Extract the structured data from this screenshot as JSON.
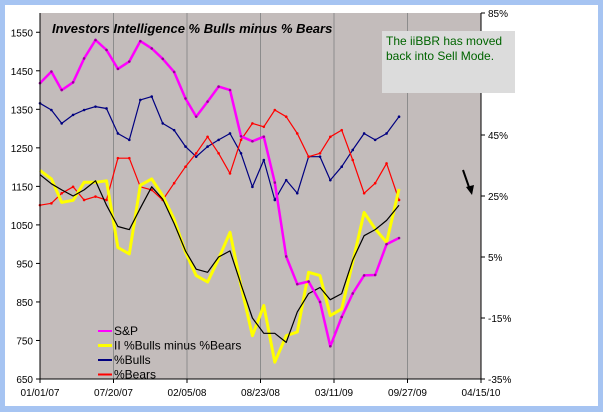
{
  "chart_data": {
    "type": "line",
    "title": "Investors Intelligence % Bulls minus % Bears",
    "annotation": "The iiBBR has moved back into Sell Mode.",
    "x_tick_labels": [
      "01/01/07",
      "07/20/07",
      "02/05/08",
      "08/23/08",
      "03/11/09",
      "09/27/09",
      "04/15/10"
    ],
    "xlim": [
      "2007-01-01",
      "2010-04-15"
    ],
    "y_left": {
      "ylim": [
        650,
        1600
      ],
      "tick_labels": [
        "650",
        "750",
        "850",
        "950",
        "1050",
        "1150",
        "1250",
        "1350",
        "1450",
        "1550"
      ]
    },
    "y_right": {
      "ylim": [
        -35,
        85
      ],
      "tick_labels": [
        "-35%",
        "-15%",
        "5%",
        "25%",
        "45%",
        "65%",
        "85%"
      ]
    },
    "grid": "vertical",
    "legend_placement": "bottom-left",
    "background_color": "#c3bcbb",
    "x": [
      "2007-01-01",
      "2007-02-01",
      "2007-03-01",
      "2007-04-01",
      "2007-05-01",
      "2007-06-01",
      "2007-07-01",
      "2007-08-01",
      "2007-09-01",
      "2007-10-01",
      "2007-11-01",
      "2007-12-01",
      "2008-01-01",
      "2008-02-01",
      "2008-03-01",
      "2008-04-01",
      "2008-05-01",
      "2008-06-01",
      "2008-07-01",
      "2008-08-01",
      "2008-09-01",
      "2008-10-01",
      "2008-11-01",
      "2008-12-01",
      "2009-01-01",
      "2009-02-01",
      "2009-03-01",
      "2009-04-01",
      "2009-05-01",
      "2009-06-01",
      "2009-07-01",
      "2009-08-01",
      "2009-09-04"
    ],
    "series": [
      {
        "name": "S&P",
        "axis": "left",
        "color": "#ff00ff",
        "values": [
          1418,
          1448,
          1400,
          1420,
          1482,
          1530,
          1504,
          1455,
          1474,
          1527,
          1508,
          1481,
          1447,
          1378,
          1331,
          1370,
          1409,
          1400,
          1280,
          1267,
          1279,
          1160,
          968,
          896,
          903,
          850,
          735,
          811,
          872,
          919,
          920,
          1000,
          1016
        ]
      },
      {
        "name": "II %Bulls minus %Bears",
        "axis": "right",
        "color": "#ffff00",
        "values": [
          33.4,
          30.6,
          22.9,
          23.6,
          29.5,
          29.5,
          30.0,
          8.1,
          6.0,
          28.5,
          30.6,
          25.1,
          17.4,
          6.6,
          -1.1,
          -3.2,
          4.4,
          13.1,
          -4.4,
          -20.8,
          -10.9,
          -29.5,
          -20.8,
          -19.6,
          0,
          -1.1,
          -14.2,
          -12.0,
          3.3,
          19.6,
          14.2,
          9.8,
          27.3
        ]
      },
      {
        "axis": "right",
        "color": "#000000",
        "values": [
          32,
          29,
          27,
          25,
          27,
          30,
          22,
          15,
          14,
          21,
          28,
          24,
          16,
          7,
          1,
          0,
          5,
          7,
          -4,
          -15,
          -20,
          -20,
          -23,
          -13,
          -7,
          -5,
          -9,
          -7,
          4,
          12,
          14,
          17,
          22
        ]
      },
      {
        "name": "%Bulls",
        "axis": "right",
        "color": "#000080",
        "values": [
          55.4,
          53.2,
          48.8,
          51.6,
          53.2,
          54.3,
          53.7,
          45.5,
          43.4,
          56.5,
          57.6,
          48.8,
          46.6,
          41.2,
          37.9,
          41.2,
          43.4,
          45.5,
          39.0,
          28.0,
          36.8,
          23.7,
          30.2,
          25.9,
          37.9,
          37.9,
          30.2,
          34.6,
          40.1,
          45.5,
          43.4,
          45.5,
          51.0
        ]
      },
      {
        "name": "%Bears",
        "axis": "right",
        "color": "#ff0000",
        "values": [
          22.0,
          22.6,
          25.9,
          28.0,
          23.7,
          24.8,
          23.7,
          37.4,
          37.4,
          28.0,
          27.0,
          23.7,
          29.2,
          34.6,
          39.0,
          44.4,
          39.0,
          32.4,
          43.4,
          48.8,
          47.7,
          53.2,
          51.0,
          45.5,
          37.9,
          39.0,
          44.4,
          46.6,
          36.8,
          25.9,
          29.2,
          35.7,
          23.7
        ]
      }
    ]
  }
}
